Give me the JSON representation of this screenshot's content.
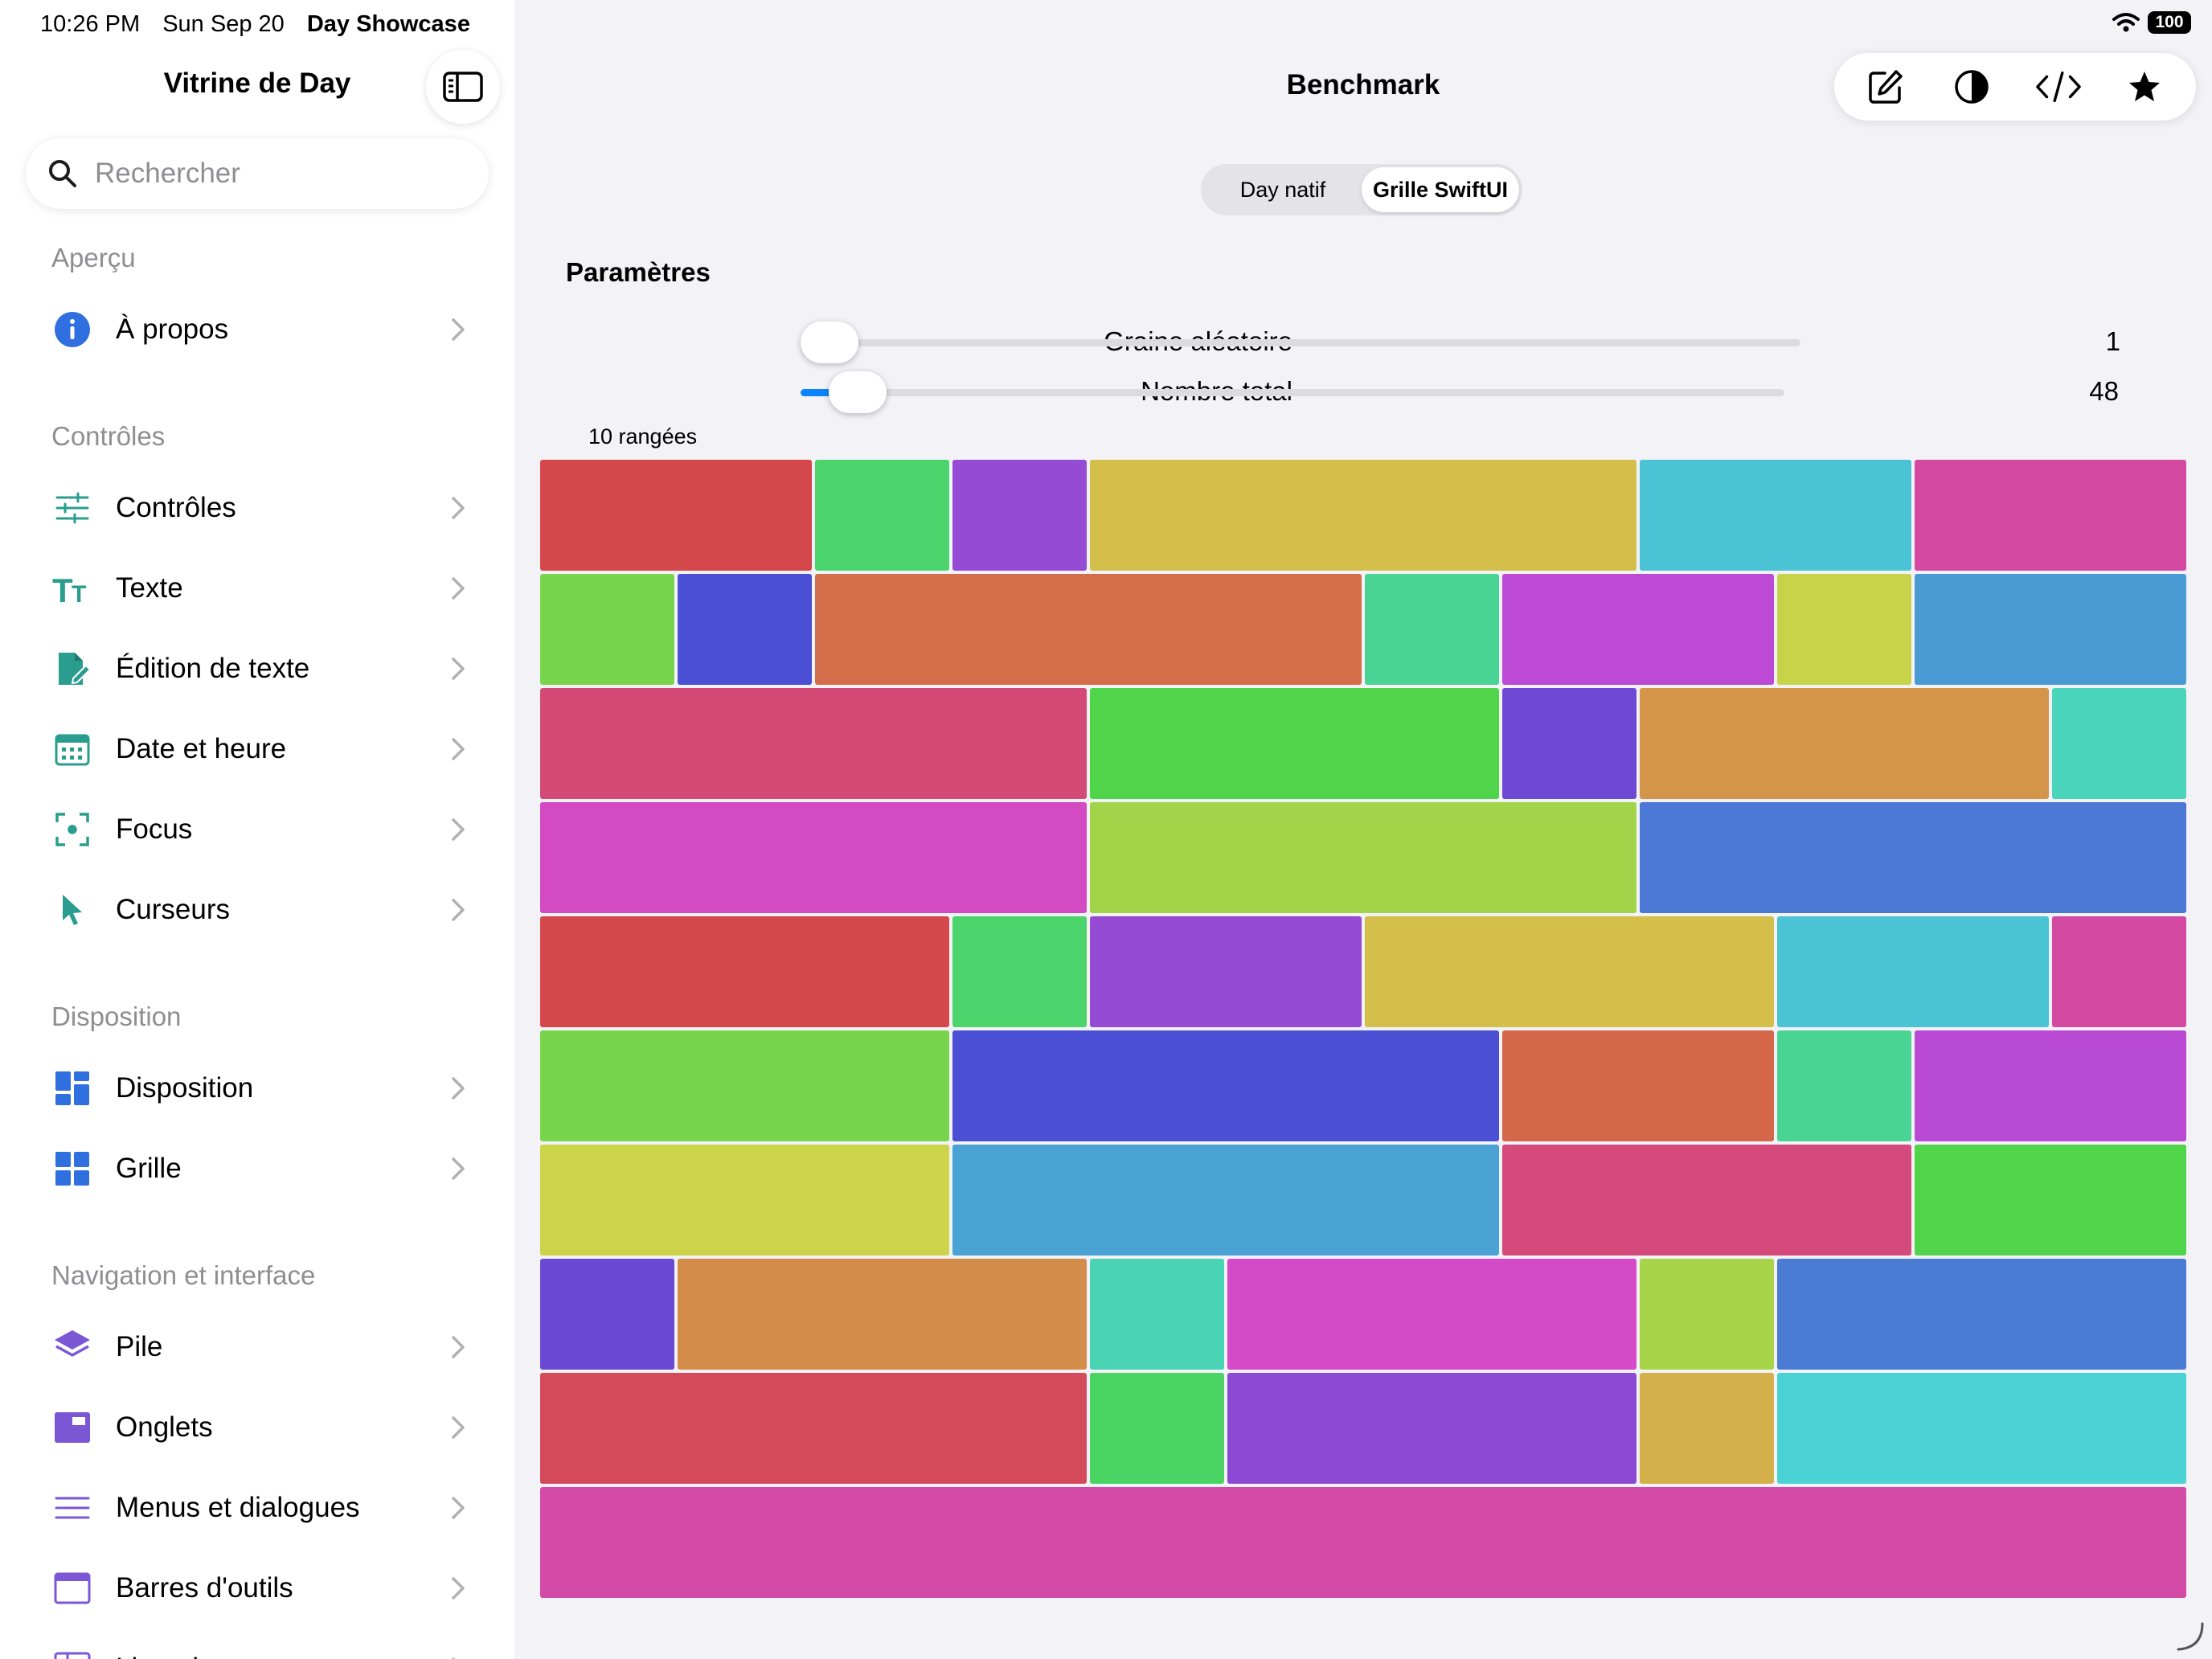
{
  "status_bar": {
    "time": "10:26 PM",
    "date": "Sun Sep 20",
    "app": "Day Showcase",
    "battery": "100"
  },
  "sidebar": {
    "title": "Vitrine de Day",
    "search_placeholder": "Rechercher",
    "sections": [
      {
        "header": "Aperçu",
        "items": [
          {
            "label": "À propos",
            "icon": "info-icon",
            "color": "#2f6fe0"
          }
        ]
      },
      {
        "header": "Contrôles",
        "items": [
          {
            "label": "Contrôles",
            "icon": "sliders-icon",
            "color": "#2a9d8f"
          },
          {
            "label": "Texte",
            "icon": "text-size-icon",
            "color": "#2a9d8f"
          },
          {
            "label": "Édition de texte",
            "icon": "document-edit-icon",
            "color": "#2a9d8f"
          },
          {
            "label": "Date et heure",
            "icon": "calendar-icon",
            "color": "#2a9d8f"
          },
          {
            "label": "Focus",
            "icon": "focus-icon",
            "color": "#2a9d8f"
          },
          {
            "label": "Curseurs",
            "icon": "cursor-icon",
            "color": "#2a9d8f"
          }
        ]
      },
      {
        "header": "Disposition",
        "items": [
          {
            "label": "Disposition",
            "icon": "layout-icon",
            "color": "#2f6fe0"
          },
          {
            "label": "Grille",
            "icon": "grid-icon",
            "color": "#2f6fe0"
          }
        ]
      },
      {
        "header": "Navigation et interface",
        "items": [
          {
            "label": "Pile",
            "icon": "stack-icon",
            "color": "#7b57d6"
          },
          {
            "label": "Onglets",
            "icon": "tabs-icon",
            "color": "#7b57d6"
          },
          {
            "label": "Menus et dialogues",
            "icon": "menu-icon",
            "color": "#7b57d6"
          },
          {
            "label": "Barres d'outils",
            "icon": "toolbar-icon",
            "color": "#7b57d6"
          },
          {
            "label": "Liste de contenu",
            "icon": "content-list-icon",
            "color": "#7b57d6"
          }
        ]
      }
    ]
  },
  "main": {
    "title": "Benchmark",
    "toolbar_icons": [
      "compose-icon",
      "contrast-icon",
      "code-icon",
      "star-icon"
    ],
    "segments": [
      {
        "label": "Day natif",
        "selected": false
      },
      {
        "label": "Grille SwiftUI",
        "selected": true
      }
    ],
    "params_title": "Paramètres",
    "sliders": [
      {
        "label": "Graine aléatoire",
        "value": "1",
        "fraction": 0.0
      },
      {
        "label": "Nombre total",
        "value": "48",
        "fraction": 0.03
      }
    ],
    "rows_label": "10 rangées",
    "grid": {
      "columns": 12,
      "rows": [
        [
          {
            "span": 2,
            "color": "#d4484c"
          },
          {
            "span": 1,
            "color": "#4cd46c"
          },
          {
            "span": 1,
            "color": "#964bd4"
          },
          {
            "span": 4,
            "color": "#d4bf4a"
          },
          {
            "span": 2,
            "color": "#4ac4d4"
          },
          {
            "span": 2,
            "color": "#d449a2"
          }
        ],
        [
          {
            "span": 1,
            "color": "#78d44a"
          },
          {
            "span": 1,
            "color": "#4a4fd4"
          },
          {
            "span": 4,
            "color": "#d46d4a"
          },
          {
            "span": 1,
            "color": "#4ad493"
          },
          {
            "span": 2,
            "color": "#bd4ad4"
          },
          {
            "span": 1,
            "color": "#c7d44a"
          },
          {
            "span": 2,
            "color": "#4a9bd4"
          }
        ],
        [
          {
            "span": 4,
            "color": "#d44a77"
          },
          {
            "span": 3,
            "color": "#4fd44a"
          },
          {
            "span": 1,
            "color": "#6e4ad4"
          },
          {
            "span": 3,
            "color": "#d4944a"
          },
          {
            "span": 1,
            "color": "#4ad4bb"
          }
        ],
        [
          {
            "span": 4,
            "color": "#d44ac3"
          },
          {
            "span": 4,
            "color": "#a2d44a"
          },
          {
            "span": 4,
            "color": "#4a78d4"
          }
        ],
        [
          {
            "span": 3,
            "color": "#d4484c"
          },
          {
            "span": 1,
            "color": "#4cd46c"
          },
          {
            "span": 2,
            "color": "#964bd4"
          },
          {
            "span": 3,
            "color": "#d4bf4a"
          },
          {
            "span": 2,
            "color": "#4ac4d4"
          },
          {
            "span": 1,
            "color": "#d449a2"
          }
        ],
        [
          {
            "span": 3,
            "color": "#78d44a"
          },
          {
            "span": 4,
            "color": "#4a4fd4"
          },
          {
            "span": 2,
            "color": "#d4664a"
          },
          {
            "span": 1,
            "color": "#4ad493"
          },
          {
            "span": 2,
            "color": "#b84ad4"
          }
        ],
        [
          {
            "span": 3,
            "color": "#ccd44a"
          },
          {
            "span": 4,
            "color": "#4aa3d4"
          },
          {
            "span": 3,
            "color": "#d44a7b"
          },
          {
            "span": 2,
            "color": "#4fd44a"
          }
        ],
        [
          {
            "span": 1,
            "color": "#6a4ad4"
          },
          {
            "span": 3,
            "color": "#d48c4a"
          },
          {
            "span": 1,
            "color": "#4ad4b4"
          },
          {
            "span": 3,
            "color": "#d44ac8"
          },
          {
            "span": 1,
            "color": "#a8d44a"
          },
          {
            "span": 3,
            "color": "#4a7cd4"
          }
        ],
        [
          {
            "span": 4,
            "color": "#d44a5a"
          },
          {
            "span": 1,
            "color": "#4ad464"
          },
          {
            "span": 3,
            "color": "#8c4ad4"
          },
          {
            "span": 1,
            "color": "#d4b04a"
          },
          {
            "span": 3,
            "color": "#4ad2d4"
          }
        ],
        [
          {
            "span": 12,
            "color": "#d44aa7"
          }
        ]
      ]
    }
  }
}
